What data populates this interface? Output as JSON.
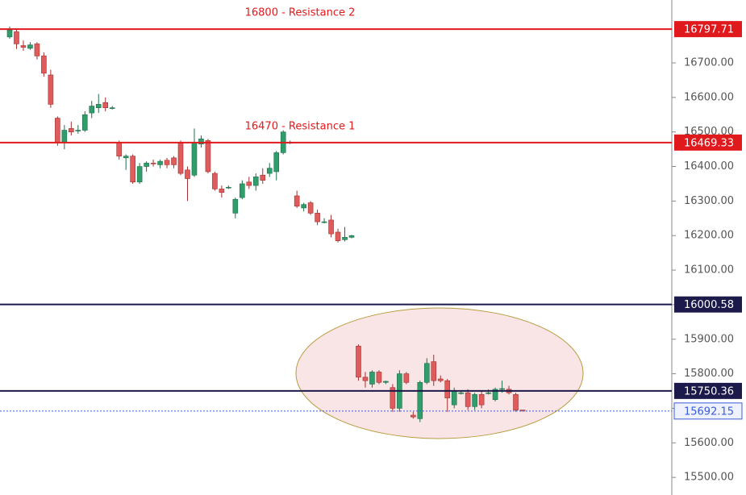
{
  "chart_data": {
    "type": "candlestick",
    "ylim": [
      15449,
      16882
    ],
    "yticks": [
      {
        "value": 15500,
        "label": "15500.00"
      },
      {
        "value": 15600,
        "label": "15600.00"
      },
      {
        "value": 15700,
        "label": "15700.00"
      },
      {
        "value": 15800,
        "label": "15800.00"
      },
      {
        "value": 15900,
        "label": "15900.00"
      },
      {
        "value": 16000,
        "label": "16000.00"
      },
      {
        "value": 16100,
        "label": "16100.00"
      },
      {
        "value": 16200,
        "label": "16200.00"
      },
      {
        "value": 16300,
        "label": "16300.00"
      },
      {
        "value": 16400,
        "label": "16400.00"
      },
      {
        "value": 16500,
        "label": "16500.00"
      },
      {
        "value": 16600,
        "label": "16600.00"
      },
      {
        "value": 16700,
        "label": "16700.00"
      }
    ],
    "up_color": "#2f9e6b",
    "down_color": "#e05c5c",
    "open": [
      16775,
      16790,
      16750,
      16742,
      16755,
      16720,
      16665,
      16540,
      16470,
      16510,
      16505,
      16505,
      16555,
      16570,
      16585,
      16568,
      16470,
      16425,
      16430,
      16355,
      16400,
      16410,
      16405,
      16418,
      16425,
      16470,
      16390,
      16375,
      16465,
      16475,
      16380,
      16335,
      16340,
      16265,
      16310,
      16355,
      16345,
      16375,
      16380,
      16385,
      16440,
      16470,
      16315,
      16280,
      16295,
      16265,
      16240,
      16245,
      16210,
      16188,
      16195,
      15880,
      15790,
      15770,
      15805,
      15775,
      15760,
      15700,
      15800,
      15680,
      15670,
      15775,
      15835,
      15785,
      15780,
      15710,
      15745,
      15745,
      15705,
      15740,
      15745,
      15725,
      15755,
      15755,
      15740,
      15695
    ],
    "high": [
      16805,
      16798,
      16765,
      16760,
      16760,
      16730,
      16680,
      16545,
      16520,
      16530,
      16520,
      16560,
      16590,
      16610,
      16600,
      16575,
      16475,
      16435,
      16435,
      16410,
      16415,
      16420,
      16420,
      16425,
      16430,
      16475,
      16400,
      16510,
      16490,
      16480,
      16385,
      16345,
      16345,
      16310,
      16360,
      16370,
      16380,
      16395,
      16410,
      16445,
      16505,
      16475,
      16330,
      16295,
      16300,
      16275,
      16250,
      16260,
      16220,
      16225,
      16202,
      15885,
      15805,
      15810,
      15810,
      15780,
      15770,
      15810,
      15805,
      15690,
      15780,
      15845,
      15855,
      15795,
      15785,
      15760,
      15750,
      15755,
      15745,
      15750,
      15755,
      15760,
      15780,
      15765,
      15745,
      15695
    ],
    "low": [
      16770,
      16740,
      16735,
      16738,
      16710,
      16660,
      16570,
      16460,
      16450,
      16490,
      16495,
      16500,
      16540,
      16555,
      16560,
      16565,
      16420,
      16390,
      16350,
      16350,
      16385,
      16400,
      16395,
      16395,
      16395,
      16375,
      16300,
      16370,
      16455,
      16380,
      16330,
      16310,
      16335,
      16250,
      16305,
      16335,
      16330,
      16350,
      16370,
      16360,
      16435,
      16465,
      16280,
      16270,
      16260,
      16230,
      16235,
      16195,
      16180,
      16183,
      16192,
      15780,
      15760,
      15760,
      15770,
      15770,
      15690,
      15690,
      15770,
      15670,
      15660,
      15770,
      15765,
      15775,
      15690,
      15700,
      15740,
      15695,
      15695,
      15700,
      15740,
      15720,
      15745,
      15740,
      15690,
      15692
    ],
    "close": [
      16795,
      16755,
      16745,
      16752,
      16720,
      16670,
      16580,
      16470,
      16505,
      16500,
      16505,
      16550,
      16575,
      16580,
      16570,
      16570,
      16430,
      16430,
      16355,
      16400,
      16410,
      16408,
      16415,
      16405,
      16405,
      16380,
      16365,
      16470,
      16480,
      16385,
      16335,
      16325,
      16340,
      16305,
      16350,
      16345,
      16370,
      16360,
      16395,
      16440,
      16500,
      16470,
      16285,
      16290,
      16265,
      16240,
      16240,
      16205,
      16185,
      16195,
      16200,
      15790,
      15780,
      15805,
      15775,
      15778,
      15700,
      15800,
      15775,
      15675,
      15775,
      15830,
      15780,
      15780,
      15730,
      15750,
      15745,
      15705,
      15740,
      15710,
      15745,
      15755,
      15757,
      15745,
      15695,
      15692
    ],
    "levels": [
      {
        "value": 16797.71,
        "color": "#e0191d"
      },
      {
        "value": 16469.33,
        "color": "#e0191d"
      },
      {
        "value": 16000.58,
        "color": "#1c1a4a"
      },
      {
        "value": 15750.36,
        "color": "#1c1a4a"
      },
      {
        "value": 15692.15,
        "color": "#3b5bdb",
        "dotted": true
      }
    ],
    "annotations": [
      {
        "text": "16800 - Resistance 2",
        "color": "#e0191d"
      },
      {
        "text": "16470 - Resistance 1",
        "color": "#e0191d"
      }
    ]
  }
}
